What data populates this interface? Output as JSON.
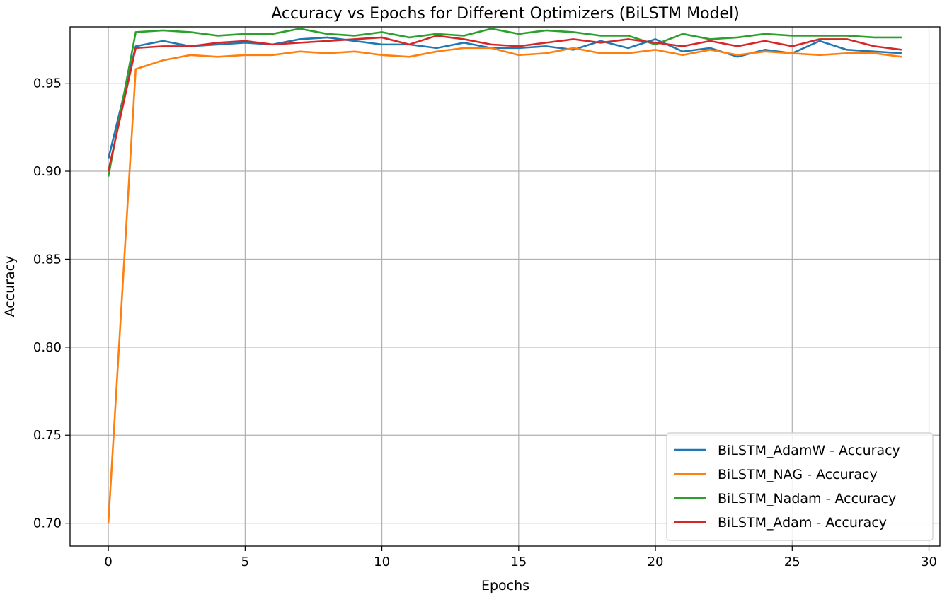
{
  "chart_data": {
    "type": "line",
    "title": "Accuracy vs Epochs for Different Optimizers (BiLSTM Model)",
    "xlabel": "Epochs",
    "ylabel": "Accuracy",
    "xlim": [
      -1.4,
      30.4
    ],
    "ylim": [
      0.687,
      0.982
    ],
    "xticks": [
      0,
      5,
      10,
      15,
      20,
      25,
      30
    ],
    "yticks": [
      0.7,
      0.75,
      0.8,
      0.85,
      0.9,
      0.95
    ],
    "xtick_labels": [
      "0",
      "5",
      "10",
      "15",
      "20",
      "25",
      "30"
    ],
    "ytick_labels": [
      "0.70",
      "0.75",
      "0.80",
      "0.85",
      "0.90",
      "0.95"
    ],
    "grid": true,
    "legend_position": "lower-right",
    "x": [
      0,
      1,
      2,
      3,
      4,
      5,
      6,
      7,
      8,
      9,
      10,
      11,
      12,
      13,
      14,
      15,
      16,
      17,
      18,
      19,
      20,
      21,
      22,
      23,
      24,
      25,
      26,
      27,
      28,
      29
    ],
    "series": [
      {
        "name": "BiLSTM_AdamW - Accuracy",
        "color": "#1f77b4",
        "values": [
          0.907,
          0.971,
          0.974,
          0.971,
          0.972,
          0.973,
          0.972,
          0.975,
          0.976,
          0.974,
          0.972,
          0.972,
          0.97,
          0.973,
          0.97,
          0.97,
          0.971,
          0.969,
          0.974,
          0.97,
          0.975,
          0.968,
          0.97,
          0.965,
          0.969,
          0.967,
          0.974,
          0.969,
          0.968,
          0.967
        ]
      },
      {
        "name": "BiLSTM_NAG - Accuracy",
        "color": "#ff7f0e",
        "values": [
          0.7,
          0.958,
          0.963,
          0.966,
          0.965,
          0.966,
          0.966,
          0.968,
          0.967,
          0.968,
          0.966,
          0.965,
          0.968,
          0.97,
          0.97,
          0.966,
          0.967,
          0.97,
          0.967,
          0.967,
          0.969,
          0.966,
          0.969,
          0.966,
          0.968,
          0.967,
          0.966,
          0.967,
          0.967,
          0.965
        ]
      },
      {
        "name": "BiLSTM_Nadam - Accuracy",
        "color": "#2ca02c",
        "values": [
          0.897,
          0.979,
          0.98,
          0.979,
          0.977,
          0.978,
          0.978,
          0.981,
          0.978,
          0.977,
          0.979,
          0.976,
          0.978,
          0.977,
          0.981,
          0.978,
          0.98,
          0.979,
          0.977,
          0.977,
          0.972,
          0.978,
          0.975,
          0.976,
          0.978,
          0.977,
          0.977,
          0.977,
          0.976,
          0.976
        ]
      },
      {
        "name": "BiLSTM_Adam - Accuracy",
        "color": "#d62728",
        "values": [
          0.9,
          0.97,
          0.971,
          0.971,
          0.973,
          0.974,
          0.972,
          0.973,
          0.974,
          0.975,
          0.976,
          0.972,
          0.977,
          0.975,
          0.972,
          0.971,
          0.973,
          0.975,
          0.973,
          0.975,
          0.973,
          0.971,
          0.974,
          0.971,
          0.974,
          0.971,
          0.975,
          0.975,
          0.971,
          0.969
        ]
      }
    ]
  }
}
